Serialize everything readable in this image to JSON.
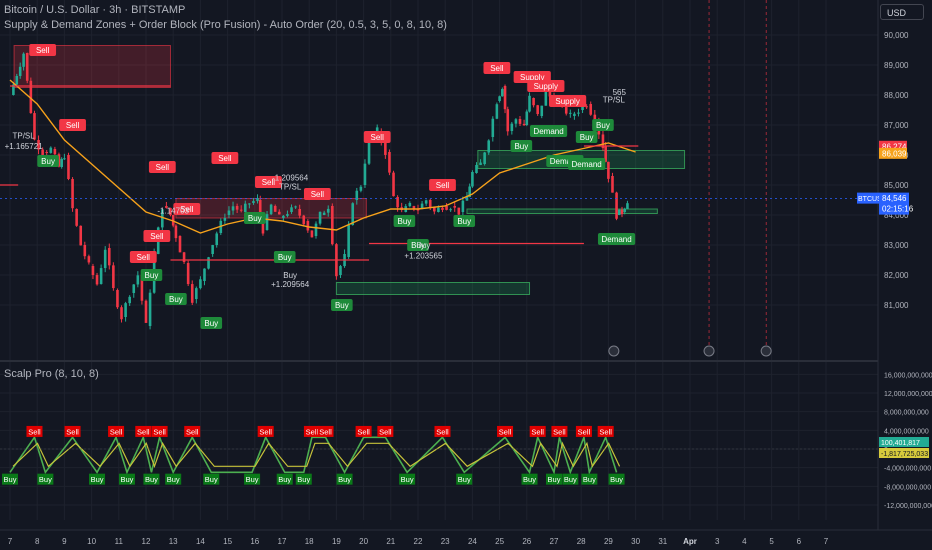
{
  "header": {
    "symbol_title": "Bitcoin / U.S. Dollar · 3h · BITSTAMP",
    "indicator_title": "Supply & Demand Zones + Order Block (Pro Fusion) - Auto Order (20, 0.5, 3, 5, 0, 8, 10, 8)",
    "currency": "USD"
  },
  "oscillator": {
    "title": "Scalp Pro (8, 10, 8)"
  },
  "chart_data": [
    {
      "type": "candlestick",
      "title": "Bitcoin / U.S. Dollar · 3h · BITSTAMP",
      "x_ticks": [
        "7",
        "8",
        "9",
        "10",
        "11",
        "12",
        "13",
        "14",
        "15",
        "16",
        "17",
        "18",
        "19",
        "20",
        "21",
        "22",
        "23",
        "24",
        "25",
        "26",
        "27",
        "28",
        "29",
        "30",
        "31",
        "Apr",
        "3",
        "4",
        "5",
        "6",
        "7"
      ],
      "y_ticks": [
        "81,000",
        "82,000",
        "83,000",
        "84,000",
        "85,000",
        "86,000",
        "87,000",
        "88,000",
        "89,000",
        "90,000"
      ],
      "ylim": [
        80100,
        90300
      ],
      "close_path": [
        [
          0.0,
          88000
        ],
        [
          0.5,
          89400
        ],
        [
          0.9,
          86500
        ],
        [
          1.2,
          86100
        ],
        [
          1.5,
          86200
        ],
        [
          1.8,
          85600
        ],
        [
          2.0,
          86000
        ],
        [
          2.3,
          84200
        ],
        [
          2.6,
          83000
        ],
        [
          2.9,
          82300
        ],
        [
          3.2,
          81700
        ],
        [
          3.5,
          82900
        ],
        [
          3.8,
          81500
        ],
        [
          4.1,
          80600
        ],
        [
          4.4,
          81400
        ],
        [
          4.7,
          82000
        ],
        [
          5.0,
          80300
        ],
        [
          5.3,
          82700
        ],
        [
          5.6,
          84300
        ],
        [
          5.9,
          84000
        ],
        [
          6.1,
          83300
        ],
        [
          6.4,
          82400
        ],
        [
          6.7,
          81200
        ],
        [
          7.0,
          81800
        ],
        [
          7.3,
          82700
        ],
        [
          7.6,
          83400
        ],
        [
          7.9,
          84000
        ],
        [
          8.2,
          84300
        ],
        [
          8.5,
          84100
        ],
        [
          8.8,
          84400
        ],
        [
          9.1,
          84500
        ],
        [
          9.3,
          83500
        ],
        [
          9.6,
          84300
        ],
        [
          9.9,
          83900
        ],
        [
          10.2,
          84100
        ],
        [
          10.5,
          84200
        ],
        [
          10.8,
          83800
        ],
        [
          11.1,
          83300
        ],
        [
          11.4,
          84000
        ],
        [
          11.7,
          84300
        ],
        [
          12.0,
          82000
        ],
        [
          12.3,
          82600
        ],
        [
          12.6,
          84500
        ],
        [
          12.9,
          85000
        ],
        [
          13.2,
          86600
        ],
        [
          13.5,
          86800
        ],
        [
          13.8,
          86100
        ],
        [
          14.1,
          84600
        ],
        [
          14.4,
          84100
        ],
        [
          14.7,
          84300
        ],
        [
          15.0,
          84200
        ],
        [
          15.3,
          84500
        ],
        [
          15.6,
          84100
        ],
        [
          15.9,
          84300
        ],
        [
          16.2,
          84300
        ],
        [
          16.5,
          84100
        ],
        [
          16.8,
          84600
        ],
        [
          17.0,
          85400
        ],
        [
          17.3,
          85700
        ],
        [
          17.6,
          86600
        ],
        [
          17.9,
          87800
        ],
        [
          18.1,
          88300
        ],
        [
          18.3,
          86800
        ],
        [
          18.6,
          87200
        ],
        [
          18.9,
          87000
        ],
        [
          19.1,
          87900
        ],
        [
          19.4,
          87300
        ],
        [
          19.7,
          88100
        ],
        [
          20.0,
          87800
        ],
        [
          20.3,
          87600
        ],
        [
          20.6,
          87300
        ],
        [
          20.9,
          87500
        ],
        [
          21.2,
          87700
        ],
        [
          21.5,
          87200
        ],
        [
          21.8,
          86300
        ],
        [
          22.0,
          85300
        ],
        [
          22.3,
          84000
        ],
        [
          22.5,
          84100
        ],
        [
          22.7,
          84500
        ]
      ],
      "ema_path": [
        [
          0.0,
          88500
        ],
        [
          1.0,
          87700
        ],
        [
          2.0,
          86500
        ],
        [
          3.0,
          85700
        ],
        [
          4.0,
          84900
        ],
        [
          5.0,
          84100
        ],
        [
          6.0,
          83800
        ],
        [
          7.0,
          83400
        ],
        [
          8.0,
          83700
        ],
        [
          9.0,
          83900
        ],
        [
          10.0,
          83800
        ],
        [
          11.0,
          83600
        ],
        [
          12.0,
          83500
        ],
        [
          13.0,
          83900
        ],
        [
          14.0,
          84200
        ],
        [
          15.0,
          84200
        ],
        [
          16.0,
          84300
        ],
        [
          17.0,
          84700
        ],
        [
          18.0,
          85400
        ],
        [
          19.0,
          85700
        ],
        [
          20.0,
          86000
        ],
        [
          21.0,
          86200
        ],
        [
          22.0,
          86400
        ],
        [
          23.0,
          86100
        ]
      ],
      "zones": [
        {
          "kind": "supply",
          "x0": 0.15,
          "x1": 5.9,
          "y0": 88250,
          "y1": 89650
        },
        {
          "kind": "supply",
          "x0": 6.1,
          "x1": 13.1,
          "y0": 83900,
          "y1": 84550
        },
        {
          "kind": "demand",
          "x0": 17.2,
          "x1": 24.8,
          "y0": 85550,
          "y1": 86150
        },
        {
          "kind": "demand",
          "x0": 16.8,
          "x1": 23.8,
          "y0": 84050,
          "y1": 84200
        },
        {
          "kind": "demand",
          "x0": 12.0,
          "x1": 19.1,
          "y0": 81350,
          "y1": 81750
        }
      ],
      "current_price": {
        "symbol": "BTCUSD",
        "value": "84,546",
        "countdown": "02:15:16"
      },
      "price_labels": [
        {
          "value": "86,274",
          "color": "#f23645",
          "y": 86274
        },
        {
          "value": "86,039",
          "color": "#f7a21b",
          "y": 86039
        }
      ],
      "signals": [
        {
          "text": "Sell",
          "type": "sell",
          "x": 1.2,
          "y": 89500
        },
        {
          "text": "Sell",
          "type": "sell",
          "x": 2.3,
          "y": 87000
        },
        {
          "text": "Buy",
          "type": "buy",
          "x": 1.4,
          "y": 85800
        },
        {
          "text": "Sell",
          "type": "sell",
          "x": 7.9,
          "y": 85900
        },
        {
          "text": "Sell",
          "type": "sell",
          "x": 5.6,
          "y": 85600
        },
        {
          "text": "Sell",
          "type": "sell",
          "x": 6.5,
          "y": 84200
        },
        {
          "text": "Sell",
          "type": "sell",
          "x": 9.5,
          "y": 85100
        },
        {
          "text": "Sell",
          "type": "sell",
          "x": 11.3,
          "y": 84700
        },
        {
          "text": "Sell",
          "type": "sell",
          "x": 15.9,
          "y": 85000
        },
        {
          "text": "Sell",
          "type": "sell",
          "x": 17.9,
          "y": 88900
        },
        {
          "text": "Sell",
          "type": "sell",
          "x": 13.5,
          "y": 86600
        },
        {
          "text": "Sell",
          "type": "sell",
          "x": 4.9,
          "y": 82600
        },
        {
          "text": "Sell",
          "type": "sell",
          "x": 5.4,
          "y": 83300
        },
        {
          "text": "Supply",
          "type": "sell",
          "x": 19.2,
          "y": 88600
        },
        {
          "text": "Supply",
          "type": "sell",
          "x": 19.7,
          "y": 88300
        },
        {
          "text": "Supply",
          "type": "sell",
          "x": 20.5,
          "y": 87800
        },
        {
          "text": "Buy",
          "type": "buy",
          "x": 9.0,
          "y": 83900
        },
        {
          "text": "Buy",
          "type": "buy",
          "x": 10.1,
          "y": 82600
        },
        {
          "text": "Buy",
          "type": "buy",
          "x": 14.5,
          "y": 83800
        },
        {
          "text": "Buy",
          "type": "buy",
          "x": 16.7,
          "y": 83800
        },
        {
          "text": "Buy",
          "type": "buy",
          "x": 15.0,
          "y": 83000
        },
        {
          "text": "Buy",
          "type": "buy",
          "x": 12.2,
          "y": 81000
        },
        {
          "text": "Buy",
          "type": "buy",
          "x": 6.1,
          "y": 81200
        },
        {
          "text": "Buy",
          "type": "buy",
          "x": 7.4,
          "y": 80400
        },
        {
          "text": "Buy",
          "type": "buy",
          "x": 5.2,
          "y": 82000
        },
        {
          "text": "Buy",
          "type": "buy",
          "x": 18.8,
          "y": 86300
        },
        {
          "text": "Buy",
          "type": "buy",
          "x": 21.2,
          "y": 86600
        },
        {
          "text": "Buy",
          "type": "buy",
          "x": 21.8,
          "y": 87000
        },
        {
          "text": "Demand",
          "type": "buy",
          "x": 19.8,
          "y": 86800
        },
        {
          "text": "Demand",
          "type": "buy",
          "x": 20.4,
          "y": 85800
        },
        {
          "text": "Demand",
          "type": "buy",
          "x": 21.2,
          "y": 85700
        },
        {
          "text": "Demand",
          "type": "buy",
          "x": 22.3,
          "y": 83200
        }
      ],
      "annotations": [
        {
          "text": "TP/SL",
          "x": 0.5,
          "y": 86550
        },
        {
          "text": "+1.165721",
          "x": 0.5,
          "y": 86200
        },
        {
          "text": "-1.209564",
          "x": 10.3,
          "y": 85150
        },
        {
          "text": "TP/SL",
          "x": 10.3,
          "y": 84850
        },
        {
          "text": "-1.14703",
          "x": 6.0,
          "y": 84050
        },
        {
          "text": "Buy",
          "x": 10.3,
          "y": 81900
        },
        {
          "text": "+1.209564",
          "x": 10.3,
          "y": 81600
        },
        {
          "text": "Buy",
          "x": 15.2,
          "y": 82900
        },
        {
          "text": "+1.203565",
          "x": 15.2,
          "y": 82550
        },
        {
          "text": "565",
          "x": 22.4,
          "y": 88000
        },
        {
          "text": "TP/SL",
          "x": 22.2,
          "y": 87750
        }
      ]
    },
    {
      "type": "line",
      "title": "Scalp Pro (8, 10, 8)",
      "y_ticks": [
        "16,000,000,000",
        "12,000,000,000",
        "8,000,000,000",
        "4,000,000,000",
        "0",
        "-4,000,000,000",
        "-8,000,000,000",
        "-12,000,000,000"
      ],
      "ylim": [
        -13500000000,
        16500000000
      ],
      "value_labels": [
        {
          "value": "100,401,817",
          "color": "#22ab94"
        },
        {
          "value": "-1,817,725,033",
          "color": "#d6ca3c"
        }
      ],
      "sell_markers": [
        0.9,
        2.3,
        3.9,
        4.9,
        5.5,
        6.7,
        9.4,
        11.1,
        11.6,
        13.0,
        13.8,
        15.9,
        18.2,
        19.4,
        20.2,
        21.1,
        21.9
      ],
      "buy_markers": [
        0.0,
        1.3,
        3.2,
        4.3,
        5.2,
        6.0,
        7.4,
        8.9,
        10.1,
        10.8,
        12.3,
        14.6,
        16.7,
        19.1,
        20.0,
        20.6,
        21.3,
        22.3
      ]
    }
  ]
}
